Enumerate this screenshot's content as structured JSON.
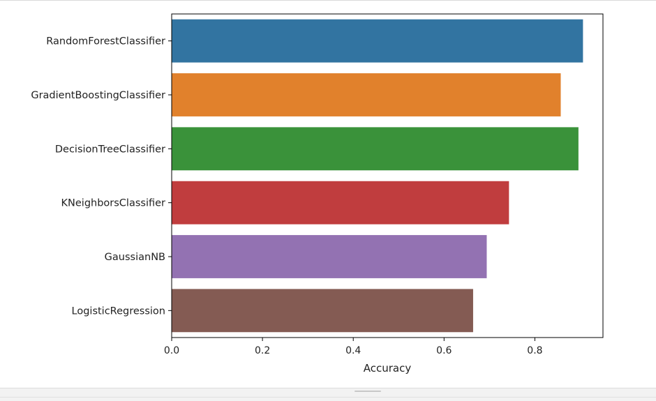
{
  "chart_data": {
    "type": "bar",
    "orientation": "horizontal",
    "title": "",
    "xlabel": "Accuracy",
    "ylabel": "",
    "xlim": [
      0,
      0.95
    ],
    "xticks": [
      "0.0",
      "0.2",
      "0.4",
      "0.6",
      "0.8"
    ],
    "xtick_values": [
      0,
      0.2,
      0.4,
      0.6,
      0.8
    ],
    "categories": [
      "RandomForestClassifier",
      "GradientBoostingClassifier",
      "DecisionTreeClassifier",
      "KNeighborsClassifier",
      "GaussianNB",
      "LogisticRegression"
    ],
    "values": [
      0.906,
      0.857,
      0.896,
      0.743,
      0.694,
      0.664
    ],
    "colors": [
      "#3274a1",
      "#e1812c",
      "#3a923a",
      "#c03d3e",
      "#9372b2",
      "#845b53"
    ],
    "grid": false,
    "legend": "none"
  }
}
